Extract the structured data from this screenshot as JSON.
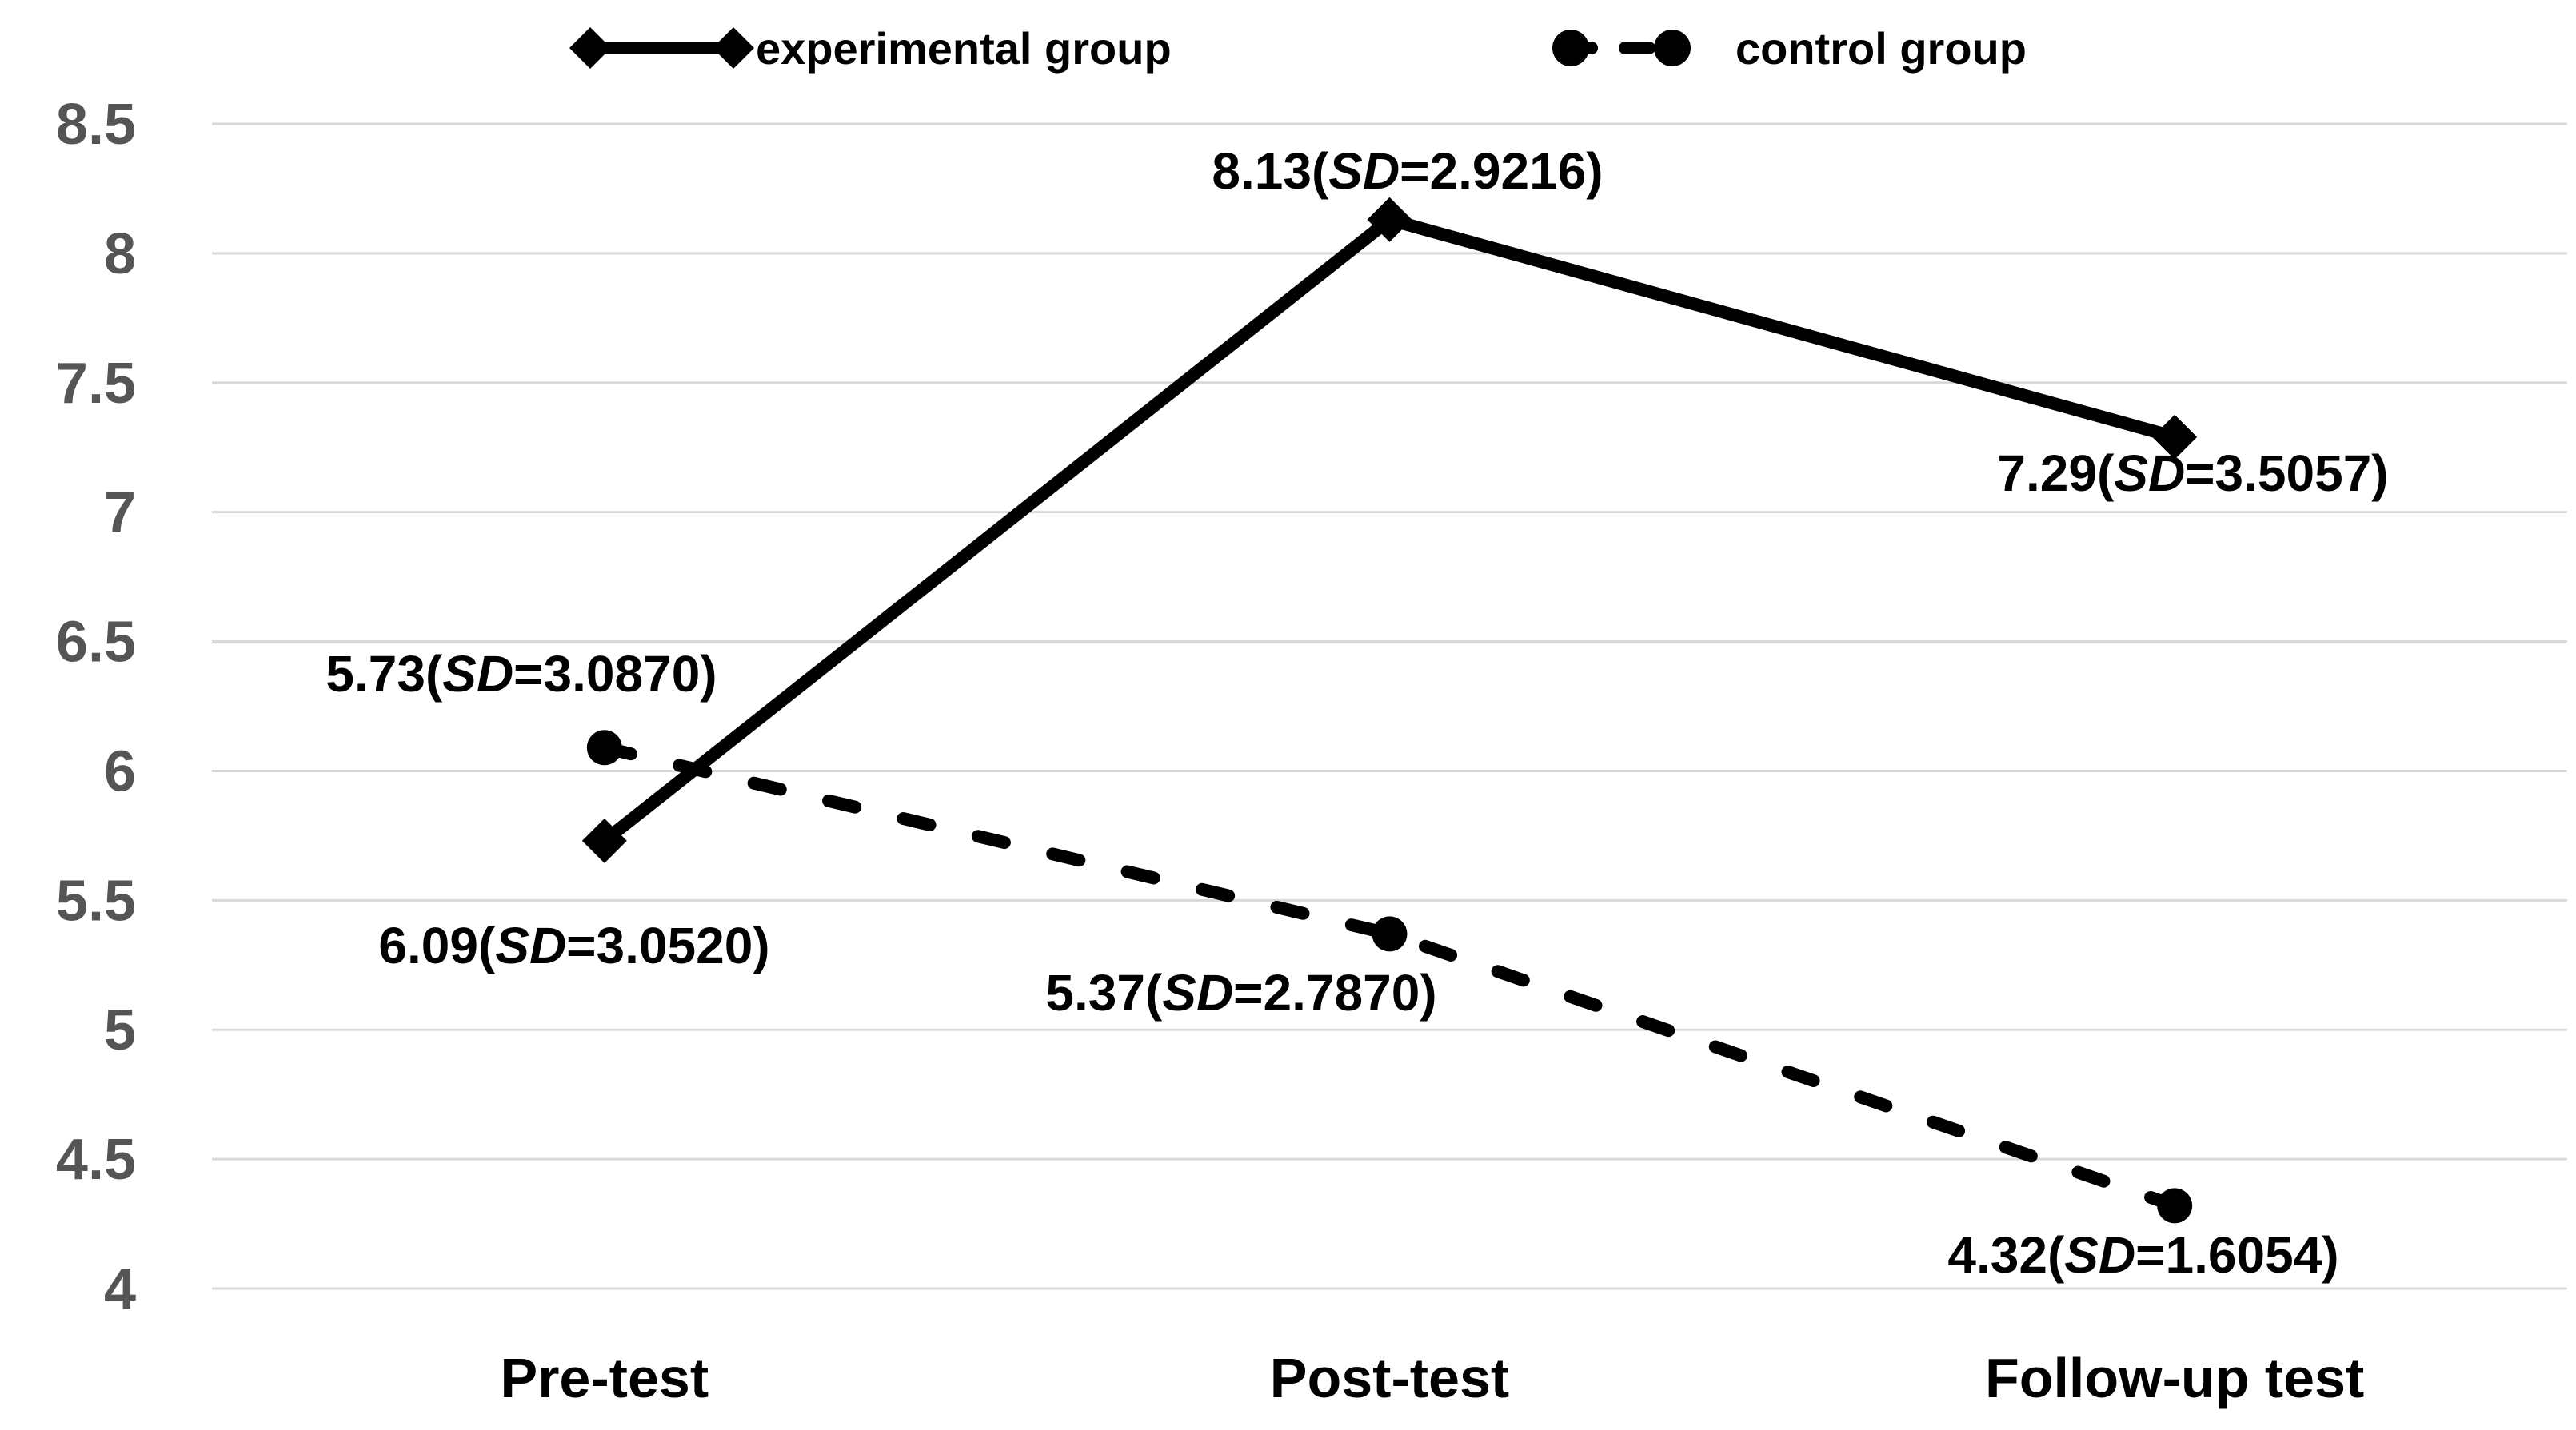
{
  "figure": {
    "background": "#ffffff"
  },
  "colors": {
    "line": "#000000",
    "marker": "#000000",
    "gridline": "#d9d9d9",
    "tick_label": "#555555",
    "category_label": "#000000",
    "data_label": "#000000",
    "background": "#ffffff"
  },
  "legend": {
    "position": "top",
    "items": [
      {
        "label": "experimental group",
        "marker": "diamond",
        "line_style": "solid"
      },
      {
        "label": "control group",
        "marker": "circle",
        "line_style": "dashed"
      }
    ]
  },
  "chart_data": {
    "type": "line",
    "title": "",
    "xlabel": "",
    "ylabel": "",
    "categories": [
      "Pre-test",
      "Post-test",
      "Follow-up test"
    ],
    "ylim": [
      4,
      8.5
    ],
    "ytick_step": 0.5,
    "yticks": [
      "8.5",
      "8",
      "7.5",
      "7",
      "6.5",
      "6",
      "5.5",
      "5",
      "4.5",
      "4"
    ],
    "grid": "horizontal",
    "legend_position": "top",
    "label_format": "{value}(SD={sd})",
    "series": [
      {
        "name": "experimental group",
        "line_style": "solid",
        "marker": "diamond",
        "color": "#000000",
        "points": [
          {
            "category": "Pre-test",
            "value": 5.73,
            "value_label": "5.73",
            "sd": 3.087,
            "sd_label": "3.0870"
          },
          {
            "category": "Post-test",
            "value": 8.13,
            "value_label": "8.13",
            "sd": 2.9216,
            "sd_label": "2.9216"
          },
          {
            "category": "Follow-up test",
            "value": 7.29,
            "value_label": "7.29",
            "sd": 3.5057,
            "sd_label": "3.5057"
          }
        ]
      },
      {
        "name": "control group",
        "line_style": "dashed",
        "marker": "circle",
        "color": "#000000",
        "points": [
          {
            "category": "Pre-test",
            "value": 6.09,
            "value_label": "6.09",
            "sd": 3.052,
            "sd_label": "3.0520"
          },
          {
            "category": "Post-test",
            "value": 5.37,
            "value_label": "5.37",
            "sd": 2.787,
            "sd_label": "2.7870"
          },
          {
            "category": "Follow-up test",
            "value": 4.32,
            "value_label": "4.32",
            "sd": 1.6054,
            "sd_label": "1.6054"
          }
        ]
      }
    ]
  }
}
